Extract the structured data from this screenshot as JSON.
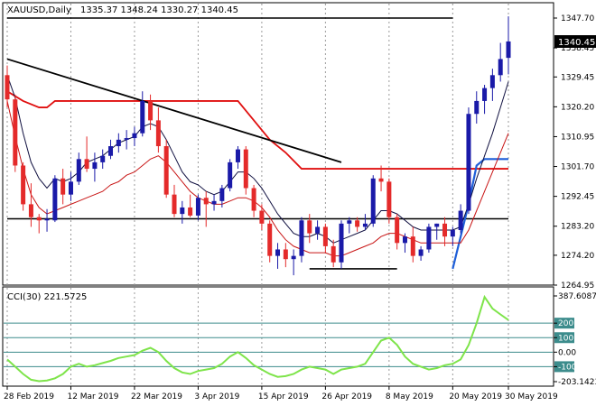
{
  "header": {
    "symbol": "XAUUSD,Daily",
    "ohlc": "1335.37 1348.24 1330.27 1340.45"
  },
  "price_panel": {
    "y_ticks": [
      "1347.70",
      "1338.45",
      "1329.45",
      "1320.20",
      "1310.95",
      "1301.70",
      "1292.45",
      "1283.20",
      "1274.20",
      "1264.95"
    ],
    "current_price_label": "1340.45"
  },
  "cci_panel": {
    "title": "CCI(30) 221.5725",
    "y_ticks": [
      "387.6087",
      "200",
      "100",
      "0.00",
      "-100",
      "-203.1423"
    ]
  },
  "x_ticks": [
    "28 Feb 2019",
    "12 Mar 2019",
    "22 Mar 2019",
    "3 Apr 2019",
    "15 Apr 2019",
    "26 Apr 2019",
    "8 May 2019",
    "20 May 2019",
    "30 May 2019"
  ],
  "colors": {
    "bull": "#1a1aa8",
    "bear": "#e42a2a",
    "cci": "#7ee44a",
    "fast_ma": "#101040",
    "slow_ma": "#c81414",
    "trendline": "#000000",
    "resistance": "#e01010",
    "support_bull": "#1f5fd8",
    "level_teal": "#3c8c8c"
  },
  "chart_data": [
    {
      "type": "candlestick",
      "symbol": "XAUUSD",
      "timeframe": "Daily",
      "ylim": [
        1264.95,
        1350.0
      ],
      "last": {
        "open": 1335.37,
        "high": 1348.24,
        "low": 1330.27,
        "close": 1340.45
      },
      "candles": [
        [
          1330.0,
          1333.0,
          1320.0,
          1322.5
        ],
        [
          1322.5,
          1324.0,
          1300.0,
          1302.0
        ],
        [
          1302.0,
          1303.0,
          1288.0,
          1290.0
        ],
        [
          1290.0,
          1296.5,
          1283.0,
          1286.0
        ],
        [
          1286.0,
          1287.0,
          1281.0,
          1285.0
        ],
        [
          1285.0,
          1288.5,
          1281.5,
          1285.5
        ],
        [
          1285.0,
          1299.0,
          1284.5,
          1298.0
        ],
        [
          1298.0,
          1301.0,
          1290.0,
          1293.0
        ],
        [
          1293.0,
          1300.0,
          1291.0,
          1297.0
        ],
        [
          1297.0,
          1306.0,
          1296.0,
          1304.0
        ],
        [
          1304.0,
          1311.0,
          1300.0,
          1301.0
        ],
        [
          1301.0,
          1306.0,
          1297.0,
          1303.0
        ],
        [
          1303.0,
          1307.0,
          1301.0,
          1305.0
        ],
        [
          1305.0,
          1310.0,
          1304.0,
          1308.0
        ],
        [
          1308.0,
          1312.0,
          1306.0,
          1310.0
        ],
        [
          1310.0,
          1313.0,
          1307.0,
          1310.5
        ],
        [
          1310.5,
          1314.0,
          1308.0,
          1312.0
        ],
        [
          1312.0,
          1325.0,
          1311.0,
          1322.0
        ],
        [
          1322.0,
          1324.0,
          1313.0,
          1316.0
        ],
        [
          1316.0,
          1320.0,
          1306.0,
          1308.0
        ],
        [
          1308.0,
          1310.0,
          1292.0,
          1293.0
        ],
        [
          1293.0,
          1296.0,
          1286.0,
          1287.0
        ],
        [
          1287.0,
          1291.0,
          1284.0,
          1289.0
        ],
        [
          1289.0,
          1293.0,
          1286.0,
          1286.5
        ],
        [
          1286.5,
          1293.0,
          1285.0,
          1292.0
        ],
        [
          1292.0,
          1294.0,
          1283.0,
          1290.0
        ],
        [
          1290.0,
          1293.0,
          1288.0,
          1291.0
        ],
        [
          1291.0,
          1296.0,
          1289.0,
          1295.0
        ],
        [
          1295.0,
          1304.0,
          1294.0,
          1303.0
        ],
        [
          1303.0,
          1308.0,
          1301.0,
          1307.0
        ],
        [
          1307.0,
          1308.0,
          1293.0,
          1295.0
        ],
        [
          1295.0,
          1296.0,
          1286.0,
          1288.0
        ],
        [
          1288.0,
          1290.0,
          1282.0,
          1284.0
        ],
        [
          1284.0,
          1285.0,
          1272.0,
          1274.0
        ],
        [
          1274.0,
          1278.0,
          1270.0,
          1276.0
        ],
        [
          1276.0,
          1278.0,
          1270.5,
          1273.0
        ],
        [
          1273.0,
          1276.0,
          1268.0,
          1274.0
        ],
        [
          1274.0,
          1286.0,
          1272.0,
          1285.0
        ],
        [
          1285.0,
          1287.0,
          1278.0,
          1281.0
        ],
        [
          1281.0,
          1285.0,
          1279.0,
          1283.0
        ],
        [
          1283.0,
          1284.0,
          1275.0,
          1277.0
        ],
        [
          1277.0,
          1279.0,
          1270.5,
          1272.0
        ],
        [
          1272.0,
          1285.0,
          1270.0,
          1284.0
        ],
        [
          1284.0,
          1286.0,
          1281.0,
          1285.0
        ],
        [
          1285.0,
          1286.0,
          1281.5,
          1283.0
        ],
        [
          1283.0,
          1287.0,
          1282.0,
          1284.0
        ],
        [
          1284.0,
          1299.0,
          1283.0,
          1298.0
        ],
        [
          1298.0,
          1302.0,
          1294.0,
          1297.0
        ],
        [
          1297.0,
          1298.0,
          1284.0,
          1286.0
        ],
        [
          1286.0,
          1287.0,
          1276.0,
          1278.0
        ],
        [
          1278.0,
          1281.0,
          1275.0,
          1280.0
        ],
        [
          1280.0,
          1283.0,
          1272.0,
          1274.0
        ],
        [
          1274.0,
          1277.0,
          1272.5,
          1276.0
        ],
        [
          1276.0,
          1284.0,
          1275.0,
          1283.0
        ],
        [
          1283.0,
          1284.0,
          1279.0,
          1284.0
        ],
        [
          1284.0,
          1286.0,
          1277.0,
          1280.0
        ],
        [
          1280.0,
          1283.0,
          1277.0,
          1282.0
        ],
        [
          1282.0,
          1290.0,
          1281.0,
          1288.0
        ],
        [
          1288.0,
          1320.0,
          1287.0,
          1318.0
        ],
        [
          1318.0,
          1325.0,
          1315.0,
          1322.0
        ],
        [
          1322.0,
          1327.0,
          1318.0,
          1326.0
        ],
        [
          1326.0,
          1332.0,
          1322.0,
          1330.0
        ],
        [
          1330.0,
          1340.0,
          1328.0,
          1335.0
        ],
        [
          1335.37,
          1348.24,
          1330.27,
          1340.45
        ]
      ],
      "overlays": {
        "fast_ma": [
          1330,
          1323,
          1312,
          1303,
          1298,
          1295,
          1298,
          1297,
          1298,
          1300,
          1303,
          1304,
          1305,
          1307,
          1309,
          1310,
          1311,
          1314,
          1315,
          1314,
          1310,
          1305,
          1300,
          1297,
          1296,
          1294,
          1293,
          1294,
          1297,
          1300,
          1300,
          1298,
          1295,
          1291,
          1287,
          1284,
          1281,
          1280,
          1280,
          1281,
          1280,
          1278,
          1279,
          1280,
          1281,
          1282,
          1285,
          1288,
          1288,
          1287,
          1285,
          1283,
          1282,
          1282,
          1282,
          1282,
          1282,
          1283,
          1290,
          1298,
          1305,
          1312,
          1320,
          1328
        ],
        "slow_ma": [
          1322,
          1311,
          1301,
          1293,
          1289,
          1287,
          1288,
          1289,
          1290,
          1291,
          1292,
          1293,
          1294,
          1296,
          1297,
          1299,
          1300,
          1302,
          1304,
          1305,
          1303,
          1300,
          1297,
          1294,
          1292,
          1291,
          1290,
          1290,
          1291,
          1292,
          1292,
          1291,
          1289,
          1286,
          1282,
          1279,
          1277,
          1276,
          1275,
          1275,
          1275,
          1274,
          1274,
          1275,
          1276,
          1277,
          1278,
          1280,
          1281,
          1281,
          1280,
          1279,
          1278,
          1278,
          1278,
          1278,
          1278,
          1278,
          1282,
          1288,
          1294,
          1300,
          1306,
          1312
        ],
        "trendline": [
          [
            1335.0,
            0
          ],
          [
            1303.0,
            42
          ]
        ],
        "resistance_steps": [
          [
            0,
            1325
          ],
          [
            2,
            1322
          ],
          [
            4,
            1320
          ],
          [
            5,
            1320
          ],
          [
            6,
            1322
          ],
          [
            18,
            1322
          ],
          [
            21,
            1322
          ],
          [
            29,
            1322
          ],
          [
            33,
            1310
          ],
          [
            35,
            1306
          ],
          [
            37,
            1301
          ],
          [
            63,
            1301
          ]
        ],
        "support_bull_steps": [
          [
            56,
            1270
          ],
          [
            58,
            1290
          ],
          [
            59,
            1302
          ],
          [
            60,
            1304
          ],
          [
            63,
            1304
          ]
        ],
        "horizontal_lines": [
          {
            "from": 0,
            "to": 56,
            "level": 1347.7,
            "color": "black"
          },
          {
            "from": 0,
            "to": 37,
            "level": 1285.5,
            "color": "black"
          },
          {
            "from": 37,
            "to": 63,
            "level": 1285.5,
            "color": "black"
          },
          {
            "from": 38,
            "to": 49,
            "level": 1270.0,
            "color": "black"
          }
        ]
      }
    },
    {
      "type": "line",
      "name": "CCI(30)",
      "last_value": 221.5725,
      "ylim": [
        -203.1423,
        387.6087
      ],
      "levels": [
        200,
        100,
        0,
        -100
      ],
      "values": [
        -50,
        -100,
        -150,
        -190,
        -200,
        -195,
        -180,
        -150,
        -100,
        -80,
        -100,
        -90,
        -75,
        -60,
        -40,
        -30,
        -20,
        10,
        30,
        0,
        -60,
        -110,
        -140,
        -150,
        -130,
        -120,
        -110,
        -80,
        -30,
        0,
        -40,
        -90,
        -120,
        -150,
        -170,
        -165,
        -150,
        -120,
        -100,
        -110,
        -120,
        -150,
        -120,
        -110,
        -100,
        -80,
        0,
        80,
        100,
        50,
        -30,
        -80,
        -100,
        -120,
        -110,
        -90,
        -80,
        -50,
        50,
        200,
        380,
        300,
        260,
        221.57
      ]
    }
  ]
}
